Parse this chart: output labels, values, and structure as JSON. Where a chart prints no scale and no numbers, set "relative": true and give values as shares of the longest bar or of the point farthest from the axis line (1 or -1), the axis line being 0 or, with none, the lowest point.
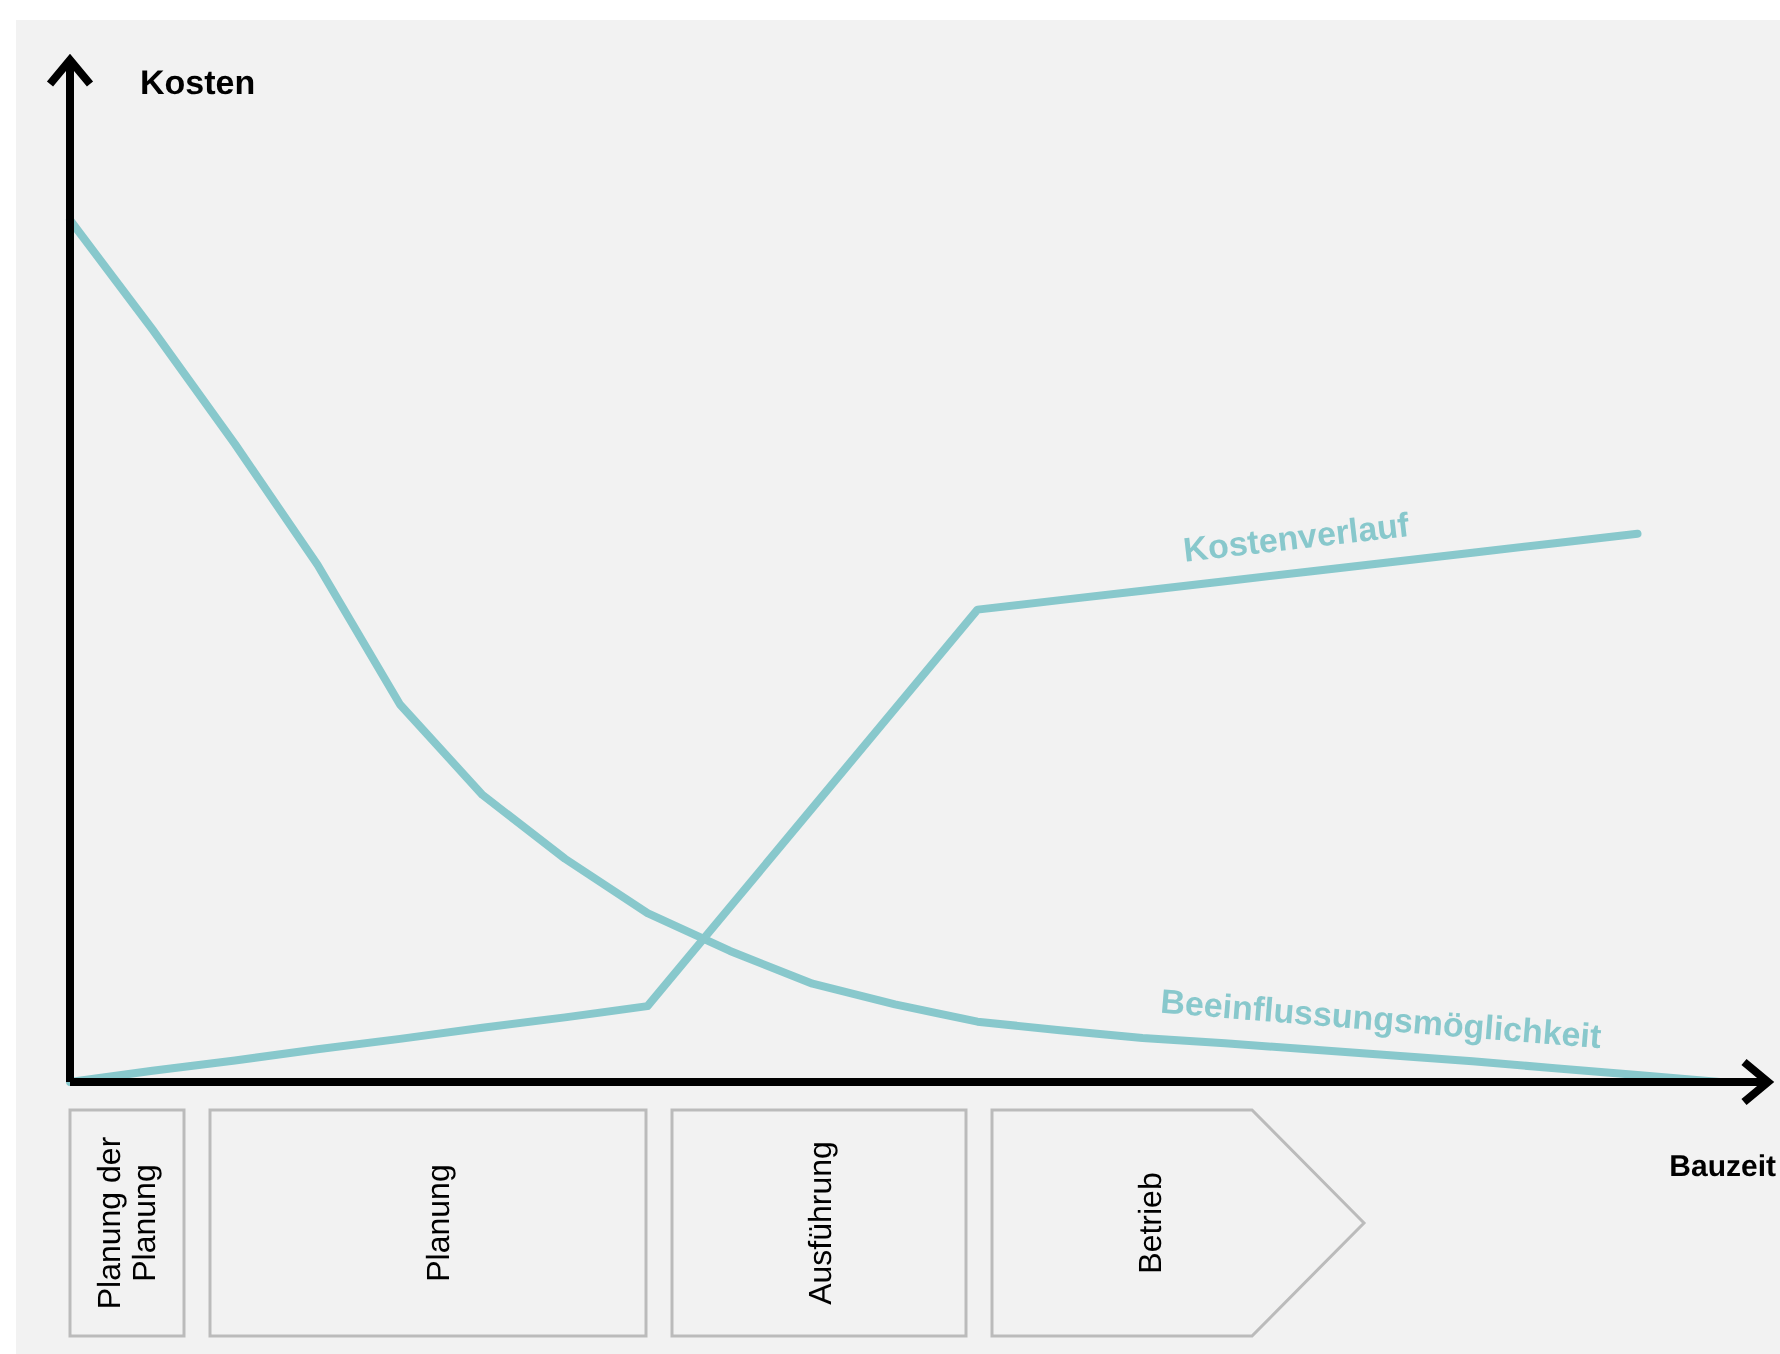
{
  "chart_data": {
    "type": "line",
    "relative": true,
    "ylabel": "Kosten",
    "xlabel": "Bauzeit",
    "categories": [
      null,
      null,
      null,
      null,
      null,
      null,
      null,
      null,
      null,
      null,
      null,
      null,
      null,
      null,
      null,
      null,
      null,
      null,
      null,
      null,
      null
    ],
    "series": [
      {
        "name": "Beeinflussungsmöglichkeit",
        "color": "#88c8cc",
        "values": [
          1,
          0.873,
          0.74,
          0.6,
          0.438,
          0.333,
          0.259,
          0.196,
          0.152,
          0.114,
          0.09,
          0.07,
          0.06,
          0.051,
          0.045,
          0.038,
          0.031,
          0.024,
          0.016,
          0.008,
          0
        ]
      },
      {
        "name": "Kostenverlauf",
        "color": "#88c8cc",
        "values": [
          0,
          0.013,
          0.025,
          0.038,
          0.05,
          0.063,
          0.075,
          0.088,
          0.203,
          0.318,
          0.433,
          0.548,
          0.559,
          0.57,
          0.581,
          0.592,
          0.603,
          0.614,
          0.625,
          0.636,
          null
        ]
      }
    ],
    "annotations": [
      "Planung der Planung",
      "Planung",
      "Ausführung",
      "Betrieb"
    ]
  }
}
